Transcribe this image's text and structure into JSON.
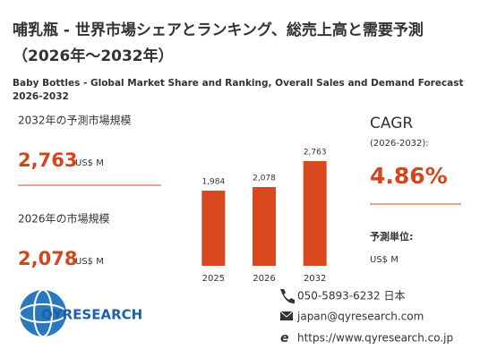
{
  "header": {
    "title": "哺乳瓶 - 世界市場シェアとランキング、総売上高と需要予測（2026年～2032年）",
    "subtitle": "Baby Bottles - Global Market Share and Ranking, Overall Sales and Demand Forecast 2026-2032"
  },
  "stats": {
    "forecast_label": "2032年の予測市場規模",
    "forecast_value": "2,763",
    "forecast_unit": "US$ M",
    "current_label": "2026年の市場規模",
    "current_value": "2,078",
    "current_unit": "US$ M"
  },
  "cagr": {
    "label": "CAGR",
    "period": "(2026-2032):",
    "value": "4.86%",
    "unit_label": "予測単位:",
    "unit": "US$ M"
  },
  "chart_data": {
    "type": "bar",
    "categories": [
      "2025",
      "2026",
      "2032"
    ],
    "values": [
      1984,
      2078,
      2763
    ],
    "value_labels": [
      "1,984",
      "2,078",
      "2,763"
    ],
    "color": "#d9481f"
  },
  "logo": "QYRESEARCH",
  "contact": {
    "phone": "050-5893-6232 日本",
    "email": "japan@qyresearch.com",
    "web": "https://www.qyresearch.co.jp"
  }
}
